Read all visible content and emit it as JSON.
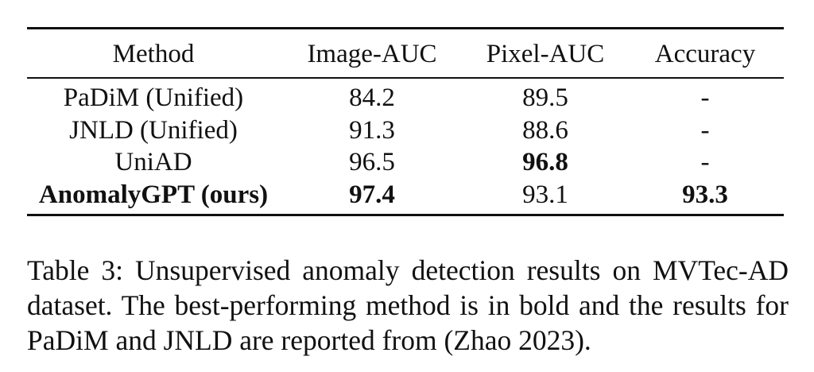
{
  "table": {
    "headers": [
      "Method",
      "Image-AUC",
      "Pixel-AUC",
      "Accuracy"
    ],
    "rows": [
      {
        "method": "PaDiM (Unified)",
        "image_auc": "84.2",
        "pixel_auc": "89.5",
        "accuracy": "-"
      },
      {
        "method": "JNLD (Unified)",
        "image_auc": "91.3",
        "pixel_auc": "88.6",
        "accuracy": "-"
      },
      {
        "method": "UniAD",
        "image_auc": "96.5",
        "pixel_auc": "96.8",
        "accuracy": "-"
      },
      {
        "method": "AnomalyGPT (ours)",
        "image_auc": "97.4",
        "pixel_auc": "93.1",
        "accuracy": "93.3"
      }
    ]
  },
  "caption": {
    "label": "Table 3:",
    "text": "Unsupervised anomaly detection results on MVTec-AD dataset. The best-performing method is in bold and the results for PaDiM and JNLD are reported from (Zhao 2023)."
  }
}
